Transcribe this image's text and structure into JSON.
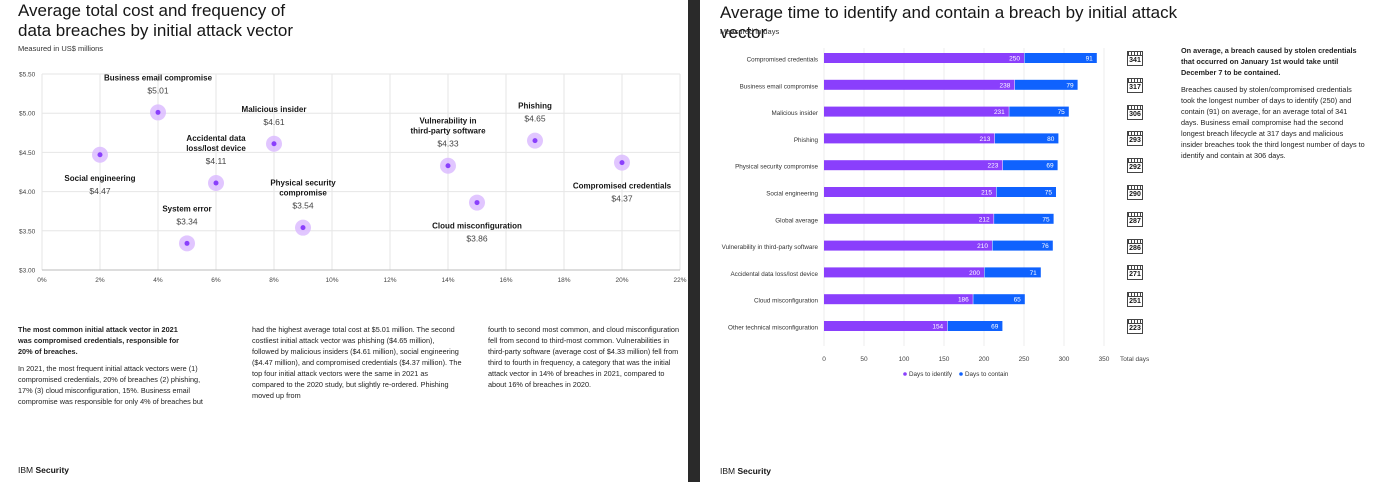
{
  "left": {
    "title_line1": "Average total cost and frequency of",
    "title_line2": "data breaches by initial attack vector",
    "subtitle": "Measured in US$ millions",
    "highlight_line1": "The most common initial attack vector in 2021",
    "highlight_line2": "was compromised credentials, responsible for",
    "highlight_line3": "20% of breaches.",
    "col1_p": "In 2021, the most frequent initial attack vectors were (1) compromised credentials, 20% of breaches (2) phishing, 17% (3) cloud misconfiguration, 15%. Business email compromise was responsible for only 4% of breaches but",
    "col2_p": "had the highest average total cost at $5.01 million. The second costliest initial attack vector was phishing ($4.65 million), followed by malicious insiders ($4.61 million), social engineering ($4.47 million), and compromised credentials ($4.37 million). The top four initial attack vectors were the same in 2021 as compared to the 2020 study, but slightly re-ordered. Phishing moved up from",
    "col3_p": "fourth to second most common, and cloud misconfiguration fell from second to third-most common. Vulnerabilities in third-party software (average cost of $4.33 million) fell from third to fourth in frequency, a category that was the initial attack vector in 14% of breaches in 2021, compared to about 16% of breaches in 2020.",
    "footer_light": "IBM ",
    "footer_bold": "Security"
  },
  "right": {
    "title": "Average time to identify and contain a breach by initial attack vector",
    "subtitle": "Measured in days",
    "side_bold": "On average, a breach caused by stolen credentials that occurred on January 1st would take until December 7 to be contained.",
    "side_p": "Breaches caused by stolen/compromised credentials took the longest number of days to identify (250) and contain (91) on average, for an average total of 341 days. Business email compromise had the second longest breach lifecycle at 317 days and malicious insider breaches took the third longest number of days to identify and contain at 306 days.",
    "footer_light": "IBM ",
    "footer_bold": "Security"
  },
  "colors": {
    "purple": "#8a3ffc",
    "blue": "#0f62fe",
    "bubble": "#d9b8ff"
  },
  "chart_data": [
    {
      "type": "scatter",
      "title": "Average total cost and frequency of data breaches by initial attack vector",
      "subtitle": "Measured in US$ millions",
      "xlim": [
        0,
        22
      ],
      "ylim": [
        3.0,
        5.5
      ],
      "xticks": [
        0,
        2,
        4,
        6,
        8,
        10,
        12,
        14,
        16,
        18,
        20,
        22
      ],
      "xtick_labels": [
        "0%",
        "2%",
        "4%",
        "6%",
        "8%",
        "10%",
        "12%",
        "14%",
        "16%",
        "18%",
        "20%",
        "22%"
      ],
      "yticks": [
        3.0,
        3.5,
        4.0,
        4.5,
        5.0,
        5.5
      ],
      "ytick_labels": [
        "$3.00",
        "$3.50",
        "$4.00",
        "$4.50",
        "$5.00",
        "$5.50"
      ],
      "grid": true,
      "points": [
        {
          "name_lines": [
            "Business email compromise"
          ],
          "value_label": "$5.01",
          "x": 4,
          "y": 5.01,
          "label_pos": "above"
        },
        {
          "name_lines": [
            "Social engineering"
          ],
          "value_label": "$4.47",
          "x": 2,
          "y": 4.47,
          "label_pos": "below"
        },
        {
          "name_lines": [
            "Accidental data",
            "loss/lost device"
          ],
          "value_label": "$4.11",
          "x": 6,
          "y": 4.11,
          "label_pos": "above"
        },
        {
          "name_lines": [
            "System error"
          ],
          "value_label": "$3.34",
          "x": 5,
          "y": 3.34,
          "label_pos": "above"
        },
        {
          "name_lines": [
            "Malicious insider"
          ],
          "value_label": "$4.61",
          "x": 8,
          "y": 4.61,
          "label_pos": "above"
        },
        {
          "name_lines": [
            "Physical  security",
            "compromise"
          ],
          "value_label": "$3.54",
          "x": 9,
          "y": 3.54,
          "label_pos": "above"
        },
        {
          "name_lines": [
            "Vulnerability in",
            "third-party software"
          ],
          "value_label": "$4.33",
          "x": 14,
          "y": 4.33,
          "label_pos": "above"
        },
        {
          "name_lines": [
            "Cloud misconfiguration"
          ],
          "value_label": "$3.86",
          "x": 15,
          "y": 3.86,
          "label_pos": "below"
        },
        {
          "name_lines": [
            "Phishing"
          ],
          "value_label": "$4.65",
          "x": 17,
          "y": 4.65,
          "label_pos": "above"
        },
        {
          "name_lines": [
            "Compromised credentials"
          ],
          "value_label": "$4.37",
          "x": 20,
          "y": 4.37,
          "label_pos": "below"
        }
      ]
    },
    {
      "type": "bar",
      "orientation": "horizontal",
      "stacked": true,
      "title": "Average time to identify and contain a breach by initial attack vector",
      "subtitle": "Measured in days",
      "categories": [
        "Compromised credentials",
        "Business email compromise",
        "Malicious insider",
        "Phishing",
        "Physical security compromise",
        "Social engineering",
        "Global average",
        "Vulnerability in third-party software",
        "Accidental data loss/lost device",
        "Cloud misconfiguration",
        "Other technical misconfiguration"
      ],
      "series": [
        {
          "name": "Days to identify",
          "values": [
            250,
            238,
            231,
            213,
            223,
            215,
            212,
            210,
            200,
            186,
            154
          ]
        },
        {
          "name": "Days to contain",
          "values": [
            91,
            79,
            75,
            80,
            69,
            75,
            75,
            76,
            71,
            65,
            69
          ]
        }
      ],
      "totals": [
        341,
        317,
        306,
        293,
        292,
        290,
        287,
        286,
        271,
        251,
        223
      ],
      "total_label": "Total days",
      "xlim": [
        0,
        350
      ],
      "xticks": [
        0,
        50,
        100,
        150,
        200,
        250,
        300,
        350
      ],
      "grid": true,
      "legend": "bottom-center"
    }
  ]
}
